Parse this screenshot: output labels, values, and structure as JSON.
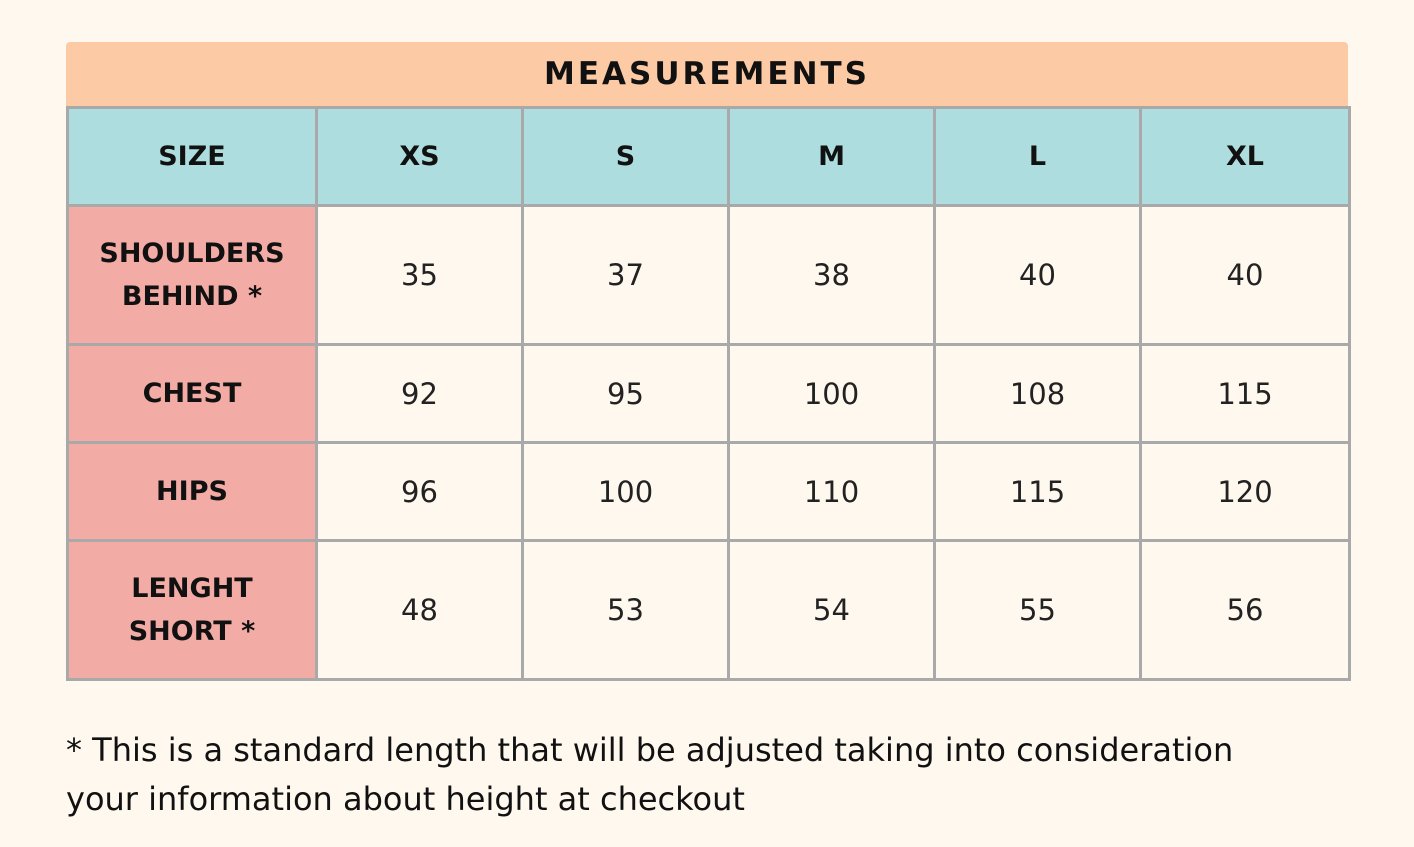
{
  "title": "MEASUREMENTS",
  "table": {
    "header": [
      "SIZE",
      "XS",
      "S",
      "M",
      "L",
      "XL"
    ],
    "rows": [
      {
        "label": "SHOULDERS\nBEHIND *",
        "values": [
          "35",
          "37",
          "38",
          "40",
          "40"
        ]
      },
      {
        "label": "CHEST",
        "values": [
          "92",
          "95",
          "100",
          "108",
          "115"
        ]
      },
      {
        "label": "HIPS",
        "values": [
          "96",
          "100",
          "110",
          "115",
          "120"
        ]
      },
      {
        "label": "LENGHT\nSHORT *",
        "values": [
          "48",
          "53",
          "54",
          "55",
          "56"
        ]
      }
    ]
  },
  "footnote": {
    "line1": "* This is a standard length that will be adjusted taking into consideration",
    "line2": "your information about height at checkout"
  },
  "colors": {
    "background": "#fff8ef",
    "title_bar": "#fccba6",
    "header_row": "#aedde0",
    "row_labels": "#f3aca5",
    "grid": "#a9a9a9"
  }
}
